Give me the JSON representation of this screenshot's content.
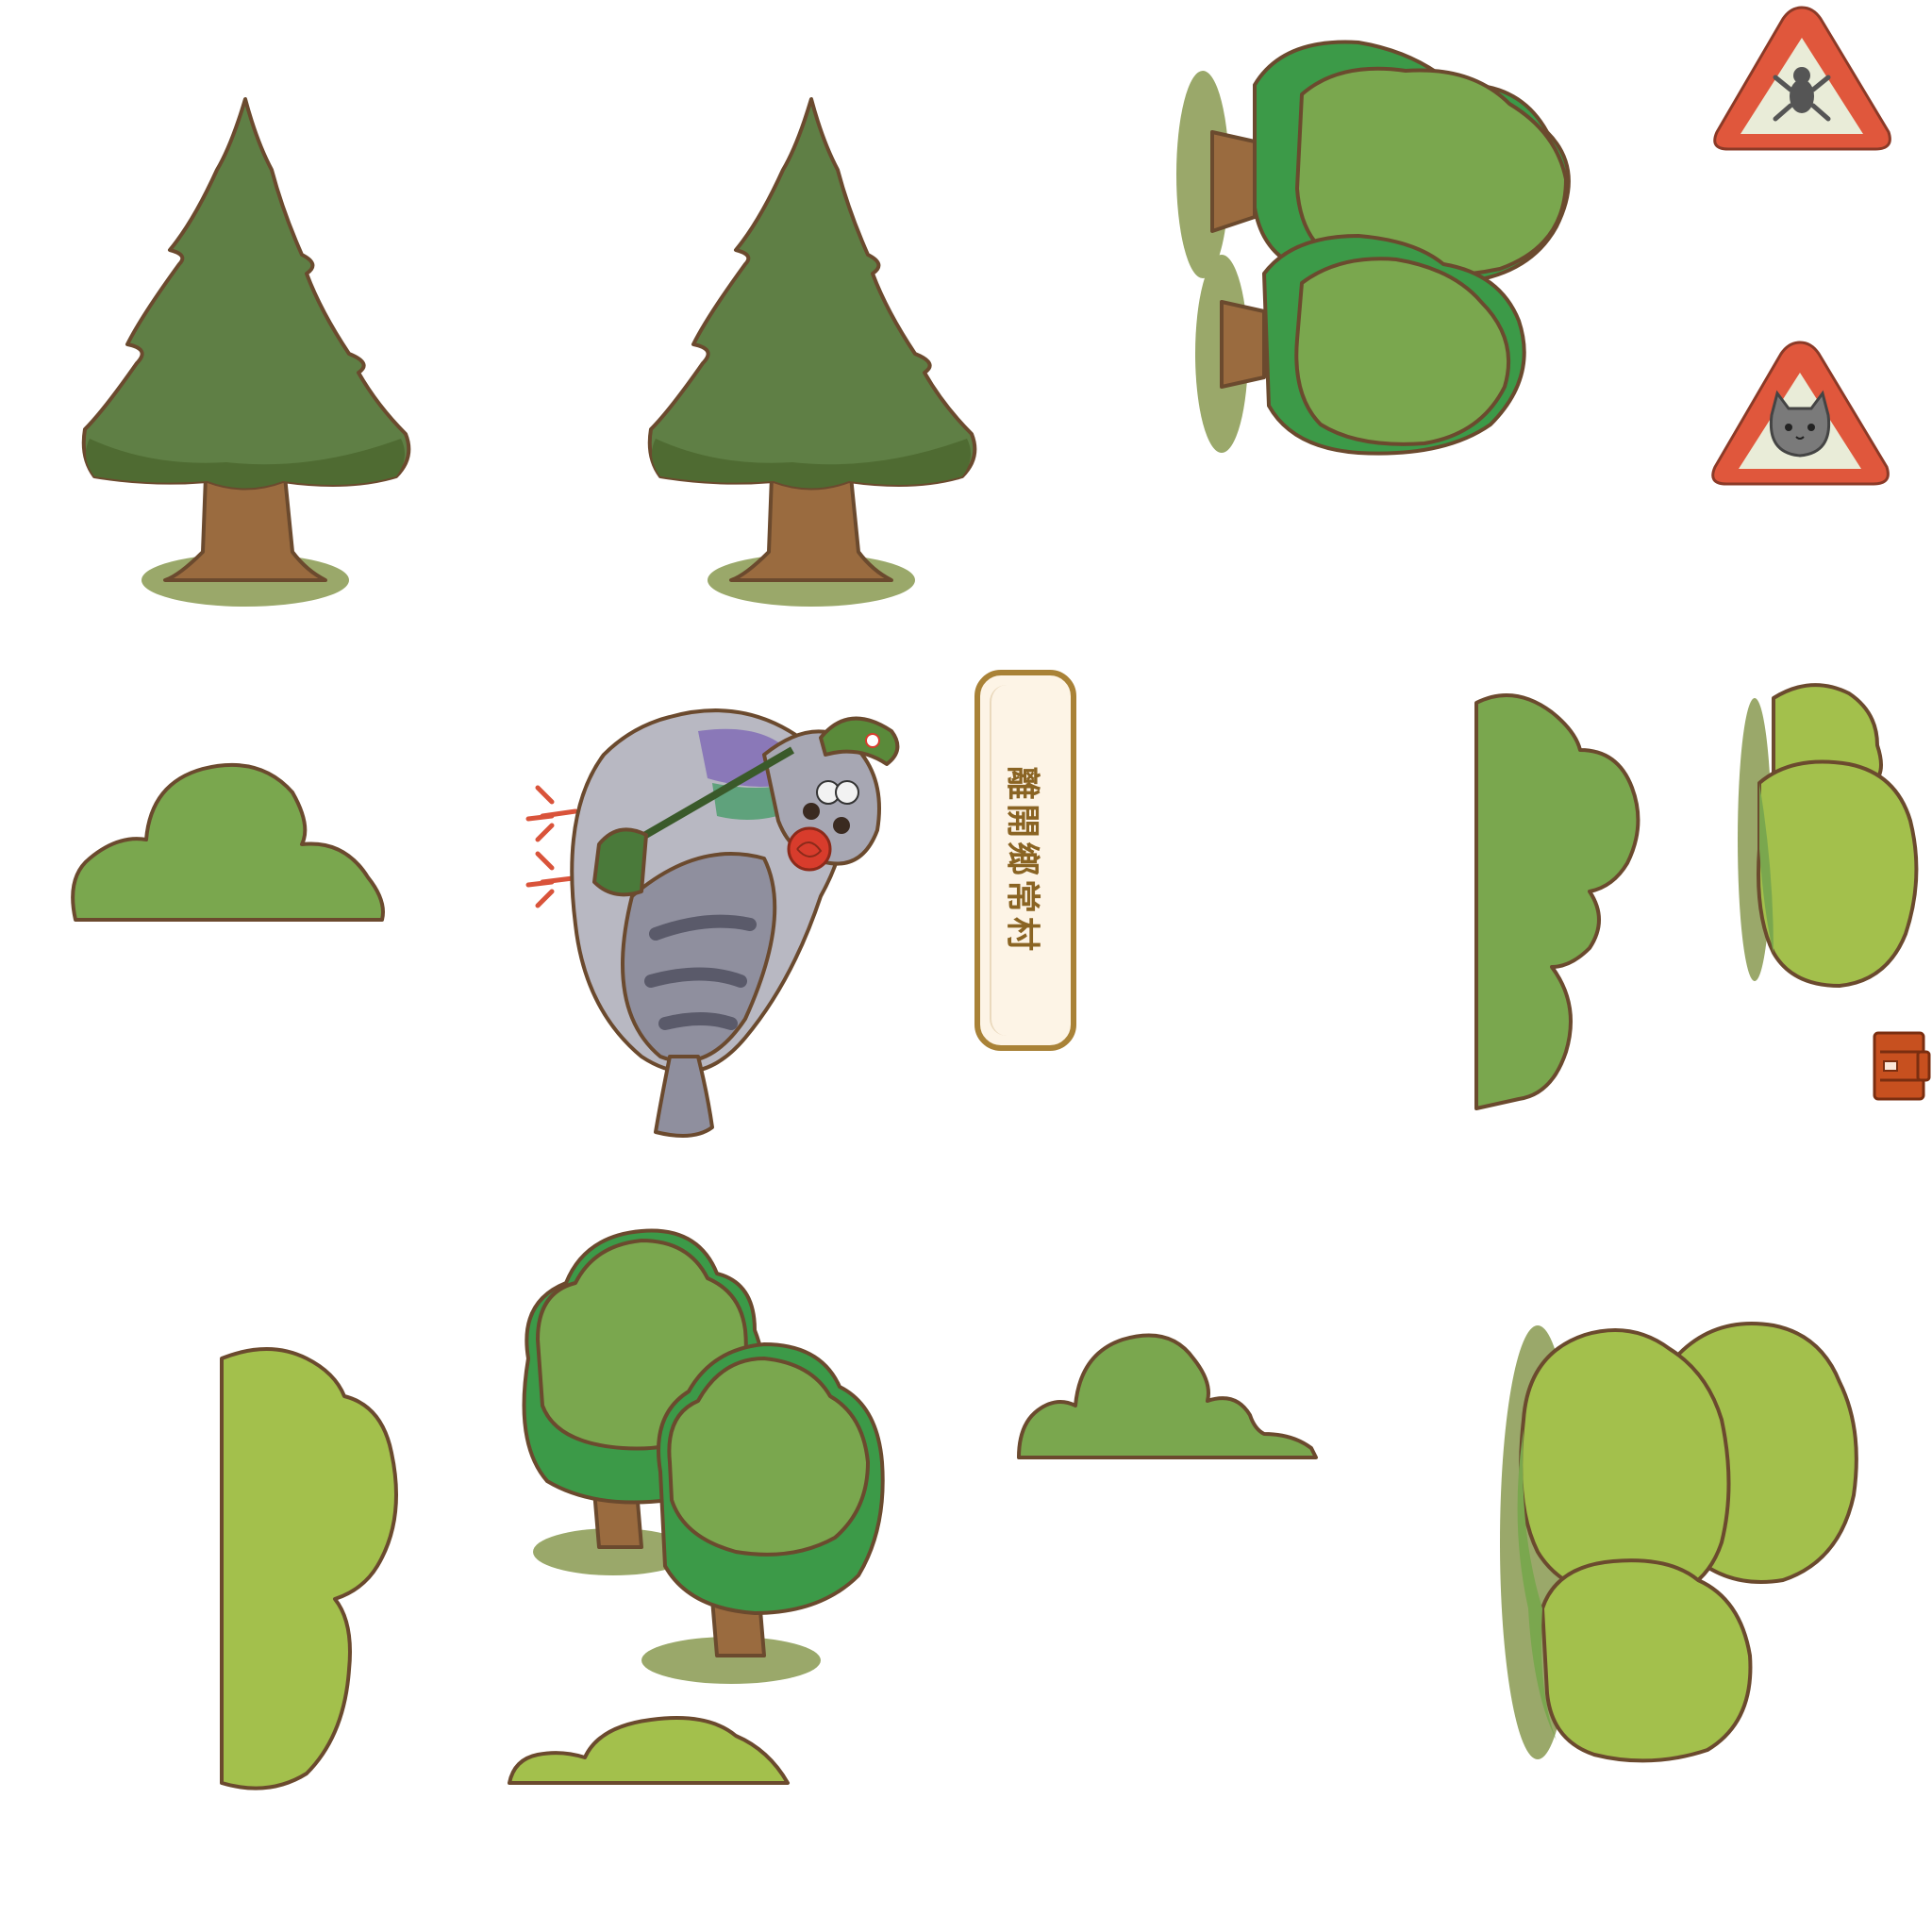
{
  "exit_button": {
    "label": "離開鄉常村"
  },
  "palette": {
    "pine_dark": "#4f6b32",
    "pine_mid": "#5f7f45",
    "trunk": "#9a6b3f",
    "ground_shadow": "#9aa86a",
    "bush_light": "#a3c04c",
    "bush_mid": "#7aa74e",
    "bush_dark": "#3c9a48",
    "outline": "#6b4a2e",
    "sign_red": "#e0573c",
    "sign_face": "#e9ecd8",
    "pigeon_grey": "#9b9ba8",
    "pigeon_purple": "#8a78b8",
    "pigeon_green": "#5fa27c",
    "cap_green": "#5a8a3a",
    "rose_red": "#d83c2c",
    "mailbox_red": "#c7501f",
    "accent_gold": "#a98237"
  },
  "icons": {
    "frog_sign": "frog-warning-sign-icon",
    "cat_sign": "cat-warning-sign-icon",
    "pigeon": "pigeon-mail-carrier-character",
    "mailbox": "red-postbox-icon"
  }
}
